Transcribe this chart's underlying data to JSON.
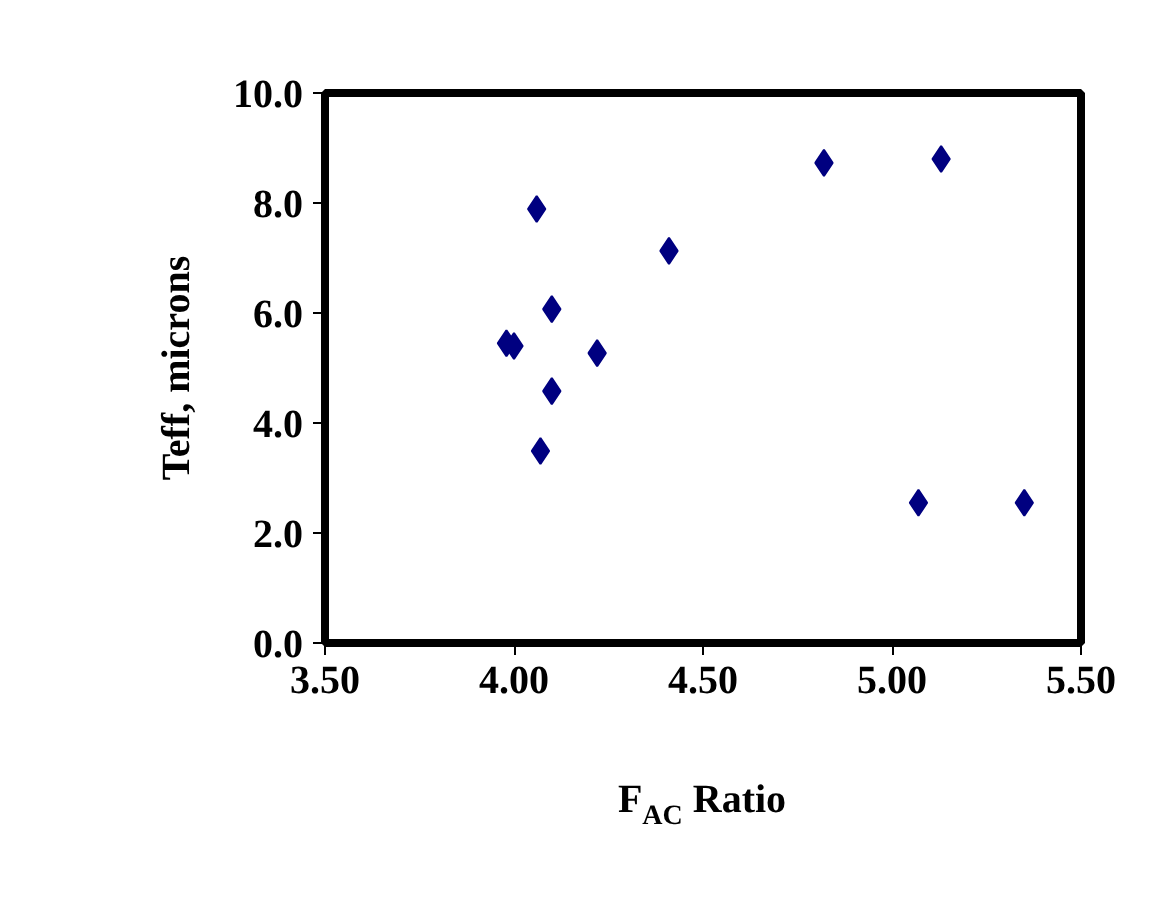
{
  "chart_data": {
    "type": "scatter",
    "xlabel": "F$_{AC}$ Ratio",
    "ylabel": "Teff, microns",
    "x": [
      3.98,
      4.0,
      4.06,
      4.1,
      4.1,
      4.07,
      4.22,
      4.41,
      4.82,
      5.13,
      5.07,
      5.35
    ],
    "values": [
      5.45,
      5.4,
      7.89,
      6.07,
      4.58,
      3.49,
      5.27,
      7.13,
      8.73,
      8.8,
      2.55,
      2.55
    ],
    "color": "#000080",
    "marker": "diamond",
    "grid": false,
    "xlim": [
      3.5,
      5.5
    ],
    "xticks": [
      {
        "value": 3.5,
        "label": "3.50"
      },
      {
        "value": 4.0,
        "label": "4.00"
      },
      {
        "value": 4.5,
        "label": "4.50"
      },
      {
        "value": 5.0,
        "label": "5.00"
      },
      {
        "value": 5.5,
        "label": "5.50"
      }
    ],
    "ylim": [
      0,
      10
    ],
    "yticks": [
      {
        "value": 0,
        "label": "0.0"
      },
      {
        "value": 2,
        "label": "2.0"
      },
      {
        "value": 4,
        "label": "4.0"
      },
      {
        "value": 6,
        "label": "6.0"
      },
      {
        "value": 8,
        "label": "8.0"
      },
      {
        "value": 10,
        "label": "10.0"
      }
    ]
  }
}
